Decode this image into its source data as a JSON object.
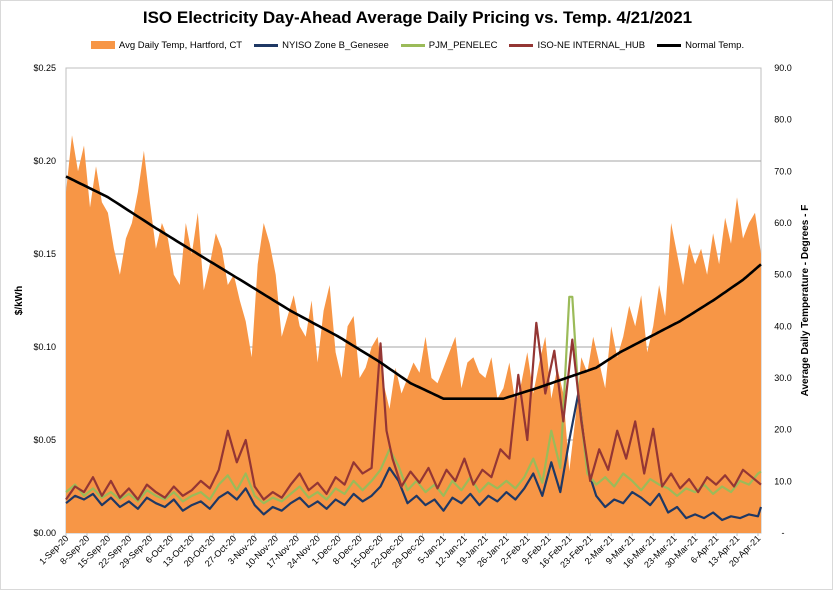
{
  "chart_data": {
    "type": "line",
    "title": "ISO Electricity Day-Ahead Average Daily Pricing vs. Temp. 4/21/2021",
    "ylabel": "$/kWh",
    "y2label": "Average Daily Temperature - Degrees - F",
    "ylim": [
      0,
      0.25
    ],
    "y2lim": [
      0,
      90
    ],
    "yticks": [
      "$0.00",
      "$0.05",
      "$0.10",
      "$0.15",
      "$0.20",
      "$0.25"
    ],
    "y2ticks": [
      "-",
      "10.0",
      "20.0",
      "30.0",
      "40.0",
      "50.0",
      "60.0",
      "70.0",
      "80.0",
      "90.0"
    ],
    "grid": true,
    "legend_position": "top",
    "x_start": "2020-09-01",
    "x_end": "2021-04-21",
    "xticks": [
      "1-Sep-20",
      "8-Sep-20",
      "15-Sep-20",
      "22-Sep-20",
      "29-Sep-20",
      "6-Oct-20",
      "13-Oct-20",
      "20-Oct-20",
      "27-Oct-20",
      "3-Nov-20",
      "10-Nov-20",
      "17-Nov-20",
      "24-Nov-20",
      "1-Dec-20",
      "8-Dec-20",
      "15-Dec-20",
      "22-Dec-20",
      "29-Dec-20",
      "5-Jan-21",
      "12-Jan-21",
      "19-Jan-21",
      "26-Jan-21",
      "2-Feb-21",
      "9-Feb-21",
      "16-Feb-21",
      "23-Feb-21",
      "2-Mar-21",
      "9-Mar-21",
      "16-Mar-21",
      "23-Mar-21",
      "30-Mar-21",
      "6-Apr-21",
      "13-Apr-21",
      "20-Apr-21"
    ],
    "series": [
      {
        "name": "Avg Daily Temp, Hartford, CT",
        "kind": "area",
        "axis": "right",
        "color": "#f79646",
        "x": [
          "2020-09-01",
          "2020-09-03",
          "2020-09-05",
          "2020-09-07",
          "2020-09-09",
          "2020-09-11",
          "2020-09-13",
          "2020-09-15",
          "2020-09-17",
          "2020-09-19",
          "2020-09-21",
          "2020-09-23",
          "2020-09-25",
          "2020-09-27",
          "2020-09-29",
          "2020-10-01",
          "2020-10-03",
          "2020-10-05",
          "2020-10-07",
          "2020-10-09",
          "2020-10-11",
          "2020-10-13",
          "2020-10-15",
          "2020-10-17",
          "2020-10-19",
          "2020-10-21",
          "2020-10-23",
          "2020-10-25",
          "2020-10-27",
          "2020-10-29",
          "2020-10-31",
          "2020-11-02",
          "2020-11-04",
          "2020-11-06",
          "2020-11-08",
          "2020-11-10",
          "2020-11-12",
          "2020-11-14",
          "2020-11-16",
          "2020-11-18",
          "2020-11-20",
          "2020-11-22",
          "2020-11-24",
          "2020-11-26",
          "2020-11-28",
          "2020-11-30",
          "2020-12-02",
          "2020-12-04",
          "2020-12-06",
          "2020-12-08",
          "2020-12-10",
          "2020-12-12",
          "2020-12-14",
          "2020-12-16",
          "2020-12-18",
          "2020-12-20",
          "2020-12-22",
          "2020-12-24",
          "2020-12-26",
          "2020-12-28",
          "2020-12-30",
          "2021-01-01",
          "2021-01-03",
          "2021-01-05",
          "2021-01-07",
          "2021-01-09",
          "2021-01-11",
          "2021-01-13",
          "2021-01-15",
          "2021-01-17",
          "2021-01-19",
          "2021-01-21",
          "2021-01-23",
          "2021-01-25",
          "2021-01-27",
          "2021-01-29",
          "2021-01-31",
          "2021-02-02",
          "2021-02-04",
          "2021-02-06",
          "2021-02-08",
          "2021-02-10",
          "2021-02-12",
          "2021-02-14",
          "2021-02-16",
          "2021-02-18",
          "2021-02-20",
          "2021-02-22",
          "2021-02-24",
          "2021-02-26",
          "2021-02-28",
          "2021-03-02",
          "2021-03-04",
          "2021-03-06",
          "2021-03-08",
          "2021-03-10",
          "2021-03-12",
          "2021-03-14",
          "2021-03-16",
          "2021-03-18",
          "2021-03-20",
          "2021-03-22",
          "2021-03-24",
          "2021-03-26",
          "2021-03-28",
          "2021-03-30",
          "2021-04-01",
          "2021-04-03",
          "2021-04-05",
          "2021-04-07",
          "2021-04-09",
          "2021-04-11",
          "2021-04-13",
          "2021-04-15",
          "2021-04-17",
          "2021-04-19",
          "2021-04-21"
        ],
        "values": [
          66,
          77,
          70,
          75,
          63,
          71,
          64,
          62,
          55,
          50,
          57,
          60,
          66,
          74,
          64,
          55,
          60,
          57,
          50,
          48,
          60,
          54,
          62,
          47,
          52,
          58,
          55,
          48,
          50,
          45,
          41,
          34,
          52,
          60,
          56,
          50,
          38,
          42,
          46,
          40,
          38,
          45,
          33,
          43,
          48,
          35,
          30,
          40,
          42,
          30,
          32,
          36,
          38,
          29,
          24,
          32,
          27,
          30,
          33,
          31,
          38,
          30,
          29,
          32,
          35,
          38,
          28,
          33,
          34,
          31,
          30,
          34,
          26,
          28,
          33,
          25,
          29,
          35,
          27,
          33,
          38,
          26,
          32,
          27,
          12,
          22,
          34,
          31,
          38,
          33,
          28,
          40,
          34,
          38,
          44,
          40,
          46,
          35,
          40,
          48,
          42,
          60,
          54,
          48,
          56,
          52,
          55,
          50,
          58,
          52,
          61,
          56,
          65,
          57,
          60,
          62,
          54
        ]
      },
      {
        "name": "NYISO Zone B_Genesee",
        "kind": "line",
        "axis": "left",
        "color": "#1f3864",
        "x": [
          "2020-09-01",
          "2020-09-04",
          "2020-09-07",
          "2020-09-10",
          "2020-09-13",
          "2020-09-16",
          "2020-09-19",
          "2020-09-22",
          "2020-09-25",
          "2020-09-28",
          "2020-10-01",
          "2020-10-04",
          "2020-10-07",
          "2020-10-10",
          "2020-10-13",
          "2020-10-16",
          "2020-10-19",
          "2020-10-22",
          "2020-10-25",
          "2020-10-28",
          "2020-10-31",
          "2020-11-03",
          "2020-11-06",
          "2020-11-09",
          "2020-11-12",
          "2020-11-15",
          "2020-11-18",
          "2020-11-21",
          "2020-11-24",
          "2020-11-27",
          "2020-11-30",
          "2020-12-03",
          "2020-12-06",
          "2020-12-09",
          "2020-12-12",
          "2020-12-15",
          "2020-12-18",
          "2020-12-21",
          "2020-12-24",
          "2020-12-27",
          "2020-12-30",
          "2021-01-02",
          "2021-01-05",
          "2021-01-08",
          "2021-01-11",
          "2021-01-14",
          "2021-01-17",
          "2021-01-20",
          "2021-01-23",
          "2021-01-26",
          "2021-01-29",
          "2021-02-01",
          "2021-02-04",
          "2021-02-07",
          "2021-02-10",
          "2021-02-13",
          "2021-02-16",
          "2021-02-19",
          "2021-02-22",
          "2021-02-25",
          "2021-02-28",
          "2021-03-03",
          "2021-03-06",
          "2021-03-09",
          "2021-03-12",
          "2021-03-15",
          "2021-03-18",
          "2021-03-21",
          "2021-03-24",
          "2021-03-27",
          "2021-03-30",
          "2021-04-02",
          "2021-04-05",
          "2021-04-08",
          "2021-04-11",
          "2021-04-14",
          "2021-04-17",
          "2021-04-20",
          "2021-04-21"
        ],
        "values": [
          0.016,
          0.02,
          0.018,
          0.021,
          0.015,
          0.019,
          0.014,
          0.017,
          0.013,
          0.019,
          0.016,
          0.014,
          0.018,
          0.012,
          0.015,
          0.017,
          0.013,
          0.019,
          0.022,
          0.018,
          0.024,
          0.015,
          0.01,
          0.014,
          0.012,
          0.016,
          0.019,
          0.014,
          0.017,
          0.013,
          0.018,
          0.015,
          0.021,
          0.017,
          0.02,
          0.025,
          0.035,
          0.028,
          0.016,
          0.02,
          0.015,
          0.018,
          0.012,
          0.019,
          0.016,
          0.021,
          0.015,
          0.02,
          0.017,
          0.022,
          0.018,
          0.024,
          0.032,
          0.02,
          0.038,
          0.022,
          0.05,
          0.075,
          0.035,
          0.02,
          0.014,
          0.018,
          0.016,
          0.022,
          0.019,
          0.015,
          0.021,
          0.011,
          0.014,
          0.008,
          0.01,
          0.008,
          0.011,
          0.007,
          0.009,
          0.008,
          0.01,
          0.009,
          0.014
        ]
      },
      {
        "name": "PJM_PENELEC",
        "kind": "line",
        "axis": "left",
        "color": "#9bbb59",
        "x": [
          "2020-09-01",
          "2020-09-04",
          "2020-09-07",
          "2020-09-10",
          "2020-09-13",
          "2020-09-16",
          "2020-09-19",
          "2020-09-22",
          "2020-09-25",
          "2020-09-28",
          "2020-10-01",
          "2020-10-04",
          "2020-10-07",
          "2020-10-10",
          "2020-10-13",
          "2020-10-16",
          "2020-10-19",
          "2020-10-22",
          "2020-10-25",
          "2020-10-28",
          "2020-10-31",
          "2020-11-03",
          "2020-11-06",
          "2020-11-09",
          "2020-11-12",
          "2020-11-15",
          "2020-11-18",
          "2020-11-21",
          "2020-11-24",
          "2020-11-27",
          "2020-11-30",
          "2020-12-03",
          "2020-12-06",
          "2020-12-09",
          "2020-12-12",
          "2020-12-15",
          "2020-12-18",
          "2020-12-21",
          "2020-12-24",
          "2020-12-27",
          "2020-12-30",
          "2021-01-02",
          "2021-01-05",
          "2021-01-08",
          "2021-01-11",
          "2021-01-14",
          "2021-01-17",
          "2021-01-20",
          "2021-01-23",
          "2021-01-26",
          "2021-01-29",
          "2021-02-01",
          "2021-02-04",
          "2021-02-07",
          "2021-02-10",
          "2021-02-13",
          "2021-02-16",
          "2021-02-17",
          "2021-02-19",
          "2021-02-22",
          "2021-02-25",
          "2021-02-28",
          "2021-03-03",
          "2021-03-06",
          "2021-03-09",
          "2021-03-12",
          "2021-03-15",
          "2021-03-18",
          "2021-03-21",
          "2021-03-24",
          "2021-03-27",
          "2021-03-30",
          "2021-04-02",
          "2021-04-05",
          "2021-04-08",
          "2021-04-11",
          "2021-04-14",
          "2021-04-17",
          "2021-04-20",
          "2021-04-21"
        ],
        "values": [
          0.022,
          0.026,
          0.02,
          0.024,
          0.019,
          0.022,
          0.018,
          0.021,
          0.017,
          0.023,
          0.02,
          0.018,
          0.022,
          0.017,
          0.02,
          0.022,
          0.018,
          0.026,
          0.031,
          0.023,
          0.032,
          0.02,
          0.016,
          0.019,
          0.017,
          0.021,
          0.025,
          0.019,
          0.022,
          0.018,
          0.024,
          0.021,
          0.028,
          0.023,
          0.028,
          0.034,
          0.045,
          0.036,
          0.023,
          0.028,
          0.022,
          0.026,
          0.02,
          0.028,
          0.023,
          0.03,
          0.022,
          0.027,
          0.024,
          0.028,
          0.024,
          0.03,
          0.04,
          0.027,
          0.055,
          0.035,
          0.127,
          0.127,
          0.075,
          0.032,
          0.026,
          0.03,
          0.025,
          0.032,
          0.028,
          0.023,
          0.029,
          0.026,
          0.024,
          0.02,
          0.024,
          0.022,
          0.026,
          0.021,
          0.025,
          0.022,
          0.028,
          0.026,
          0.032,
          0.033
        ]
      },
      {
        "name": "ISO-NE INTERNAL_HUB",
        "kind": "line",
        "axis": "left",
        "color": "#943634",
        "x": [
          "2020-09-01",
          "2020-09-04",
          "2020-09-07",
          "2020-09-10",
          "2020-09-13",
          "2020-09-16",
          "2020-09-19",
          "2020-09-22",
          "2020-09-25",
          "2020-09-28",
          "2020-10-01",
          "2020-10-04",
          "2020-10-07",
          "2020-10-10",
          "2020-10-13",
          "2020-10-16",
          "2020-10-19",
          "2020-10-22",
          "2020-10-25",
          "2020-10-28",
          "2020-10-31",
          "2020-11-03",
          "2020-11-06",
          "2020-11-09",
          "2020-11-12",
          "2020-11-15",
          "2020-11-18",
          "2020-11-21",
          "2020-11-24",
          "2020-11-27",
          "2020-11-30",
          "2020-12-03",
          "2020-12-06",
          "2020-12-09",
          "2020-12-12",
          "2020-12-15",
          "2020-12-17",
          "2020-12-19",
          "2020-12-22",
          "2020-12-25",
          "2020-12-28",
          "2020-12-31",
          "2021-01-03",
          "2021-01-06",
          "2021-01-09",
          "2021-01-12",
          "2021-01-15",
          "2021-01-18",
          "2021-01-21",
          "2021-01-24",
          "2021-01-27",
          "2021-01-30",
          "2021-02-02",
          "2021-02-05",
          "2021-02-08",
          "2021-02-11",
          "2021-02-14",
          "2021-02-17",
          "2021-02-20",
          "2021-02-23",
          "2021-02-26",
          "2021-03-01",
          "2021-03-04",
          "2021-03-07",
          "2021-03-10",
          "2021-03-13",
          "2021-03-16",
          "2021-03-19",
          "2021-03-22",
          "2021-03-25",
          "2021-03-28",
          "2021-03-31",
          "2021-04-03",
          "2021-04-06",
          "2021-04-09",
          "2021-04-12",
          "2021-04-15",
          "2021-04-18",
          "2021-04-21"
        ],
        "values": [
          0.018,
          0.025,
          0.022,
          0.03,
          0.02,
          0.028,
          0.019,
          0.024,
          0.018,
          0.026,
          0.022,
          0.019,
          0.025,
          0.02,
          0.023,
          0.028,
          0.024,
          0.034,
          0.055,
          0.038,
          0.05,
          0.025,
          0.018,
          0.022,
          0.019,
          0.026,
          0.032,
          0.023,
          0.027,
          0.021,
          0.03,
          0.026,
          0.038,
          0.032,
          0.035,
          0.102,
          0.055,
          0.04,
          0.025,
          0.033,
          0.027,
          0.035,
          0.024,
          0.034,
          0.028,
          0.04,
          0.026,
          0.034,
          0.03,
          0.045,
          0.04,
          0.085,
          0.05,
          0.113,
          0.075,
          0.098,
          0.06,
          0.104,
          0.06,
          0.028,
          0.045,
          0.034,
          0.055,
          0.04,
          0.06,
          0.032,
          0.056,
          0.025,
          0.032,
          0.024,
          0.029,
          0.022,
          0.03,
          0.026,
          0.031,
          0.025,
          0.034,
          0.03,
          0.026
        ]
      },
      {
        "name": "Normal Temp.",
        "kind": "line",
        "axis": "right",
        "color": "#000000",
        "x": [
          "2020-09-01",
          "2020-09-15",
          "2020-10-01",
          "2020-10-15",
          "2020-11-01",
          "2020-11-15",
          "2020-12-01",
          "2020-12-15",
          "2020-12-25",
          "2021-01-05",
          "2021-01-15",
          "2021-01-25",
          "2021-02-05",
          "2021-02-15",
          "2021-02-25",
          "2021-03-05",
          "2021-03-15",
          "2021-03-25",
          "2021-04-05",
          "2021-04-15",
          "2021-04-21"
        ],
        "values": [
          69,
          65,
          59,
          54,
          48,
          43,
          38,
          33,
          29,
          26,
          26,
          26,
          28,
          30,
          32,
          35,
          38,
          41,
          45,
          49,
          52
        ]
      }
    ]
  }
}
